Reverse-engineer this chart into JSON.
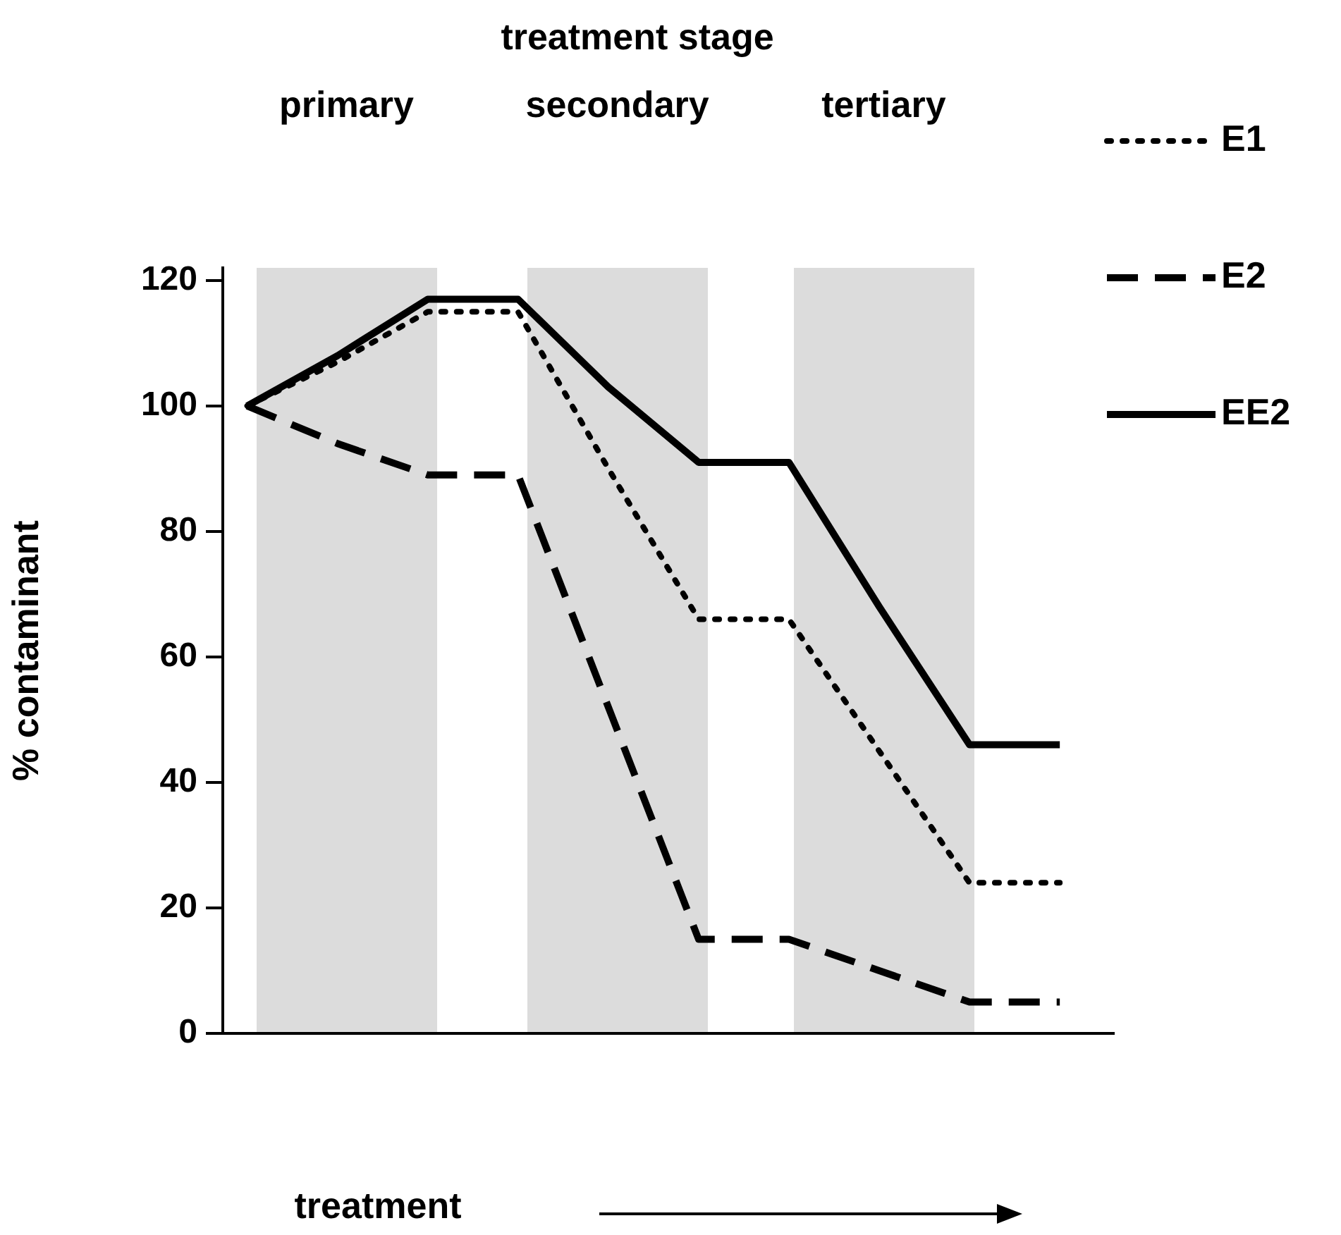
{
  "chart_data": {
    "type": "line",
    "title": "treatment stage",
    "xlabel": "treatment",
    "ylabel": "% contaminant",
    "categories": [
      null,
      null,
      null,
      null,
      null,
      null,
      null,
      null,
      null,
      null
    ],
    "series": [
      {
        "name": "E1",
        "color": "#000000",
        "line_style": "dotted",
        "values": [
          100,
          107,
          115,
          115,
          90,
          66,
          66,
          45,
          24,
          24
        ]
      },
      {
        "name": "E2",
        "color": "#000000",
        "line_style": "dashed",
        "values": [
          100,
          94,
          89,
          89,
          52,
          15,
          15,
          10,
          5,
          5
        ]
      },
      {
        "name": "EE2",
        "color": "#000000",
        "line_style": "solid",
        "values": [
          100,
          108,
          117,
          117,
          103,
          91,
          91,
          68,
          46,
          46
        ]
      }
    ],
    "ylim": [
      0,
      122
    ],
    "yticks": [
      0,
      20,
      40,
      60,
      80,
      100,
      120
    ],
    "annotations": [
      "primary",
      "secondary",
      "tertiary"
    ],
    "tick_labels": "y",
    "grid": false,
    "legend": "right",
    "marker": "none"
  }
}
